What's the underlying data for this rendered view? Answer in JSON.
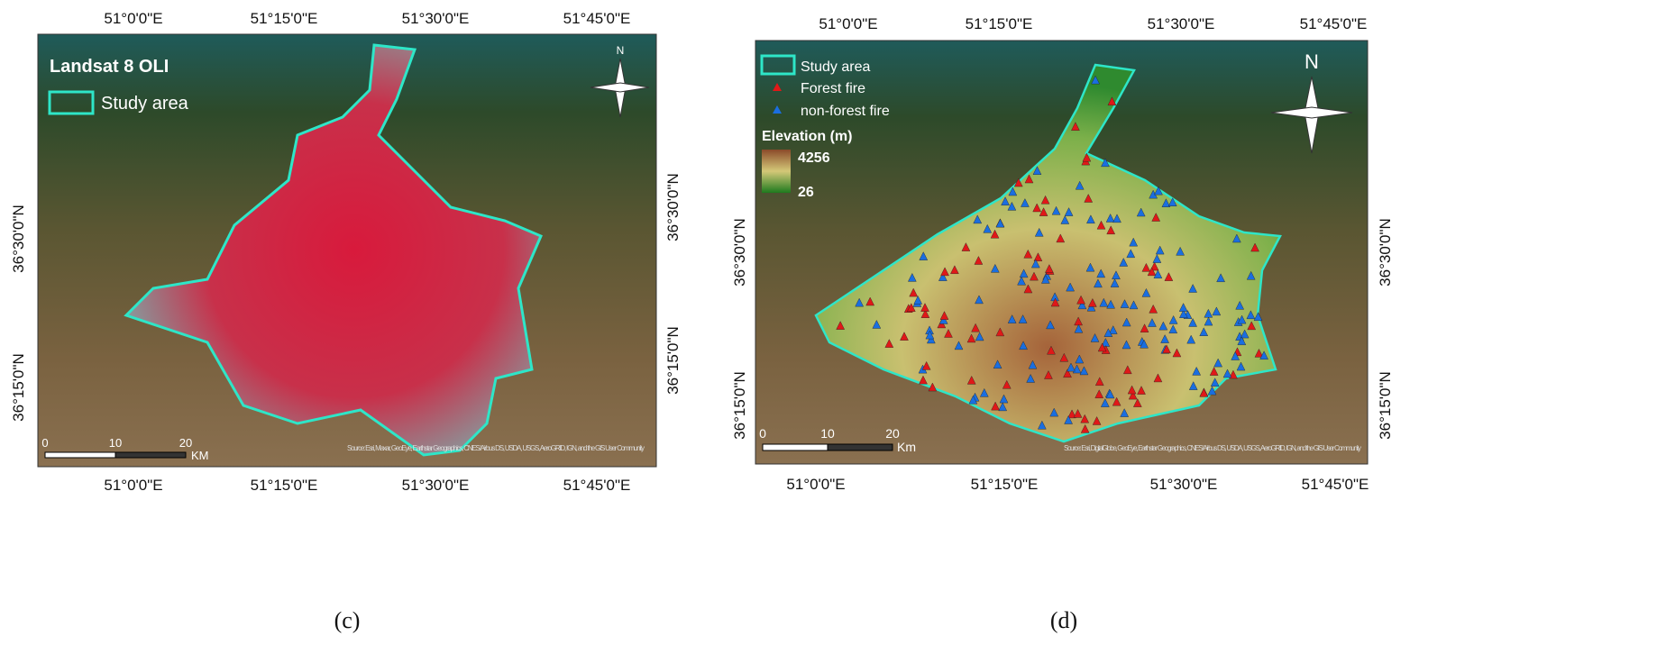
{
  "panels": [
    {
      "coords": {
        "top": [
          "51°0'0\"E",
          "51°15'0\"E",
          "51°30'0\"E",
          "51°45'0\"E"
        ],
        "bottom": [
          "51°0'0\"E",
          "51°15'0\"E",
          "51°30'0\"E",
          "51°45'0\"E"
        ],
        "left": [
          "36°30'0\"N",
          "36°15'0\"N"
        ],
        "right": [
          "36°30'0\"N",
          "36°15'0\"N"
        ]
      },
      "title": "Landsat 8 OLI",
      "legend": [
        "Study area"
      ],
      "scale": {
        "ticks": [
          "0",
          "10",
          "20"
        ],
        "unit": "KM"
      },
      "attribution": "Source: Esri, Maxar, GeoEye, Earthstar Geographics, CNES/Airbus DS, USDA, USGS, AeroGRID, IGN, and the GIS User Community",
      "north": "N",
      "caption": "(c)"
    },
    {
      "coords": {
        "top": [
          "51°0'0\"E",
          "51°15'0\"E",
          "51°30'0\"E",
          "51°45'0\"E"
        ],
        "bottom": [
          "51°0'0\"E",
          "51°15'0\"E",
          "51°30'0\"E",
          "51°45'0\"E"
        ],
        "left": [
          "36°30'0\"N",
          "36°15'0\"N"
        ],
        "right": [
          "36°30'0\"N",
          "36°15'0\"N"
        ]
      },
      "legend": [
        "Study area",
        "Forest fire",
        "non-forest fire"
      ],
      "elevation": {
        "title": "Elevation (m)",
        "max": "4256",
        "min": "26"
      },
      "scale": {
        "ticks": [
          "0",
          "10",
          "20"
        ],
        "unit": "Km"
      },
      "attribution": "Source: Esri, DigitalGlobe, GeoEye, Earthstar Geographics, CNES/Airbus DS, USDA, USGS, AeroGRID, IGN, and the GIS User Community",
      "north": "N",
      "caption": "(d)"
    }
  ]
}
